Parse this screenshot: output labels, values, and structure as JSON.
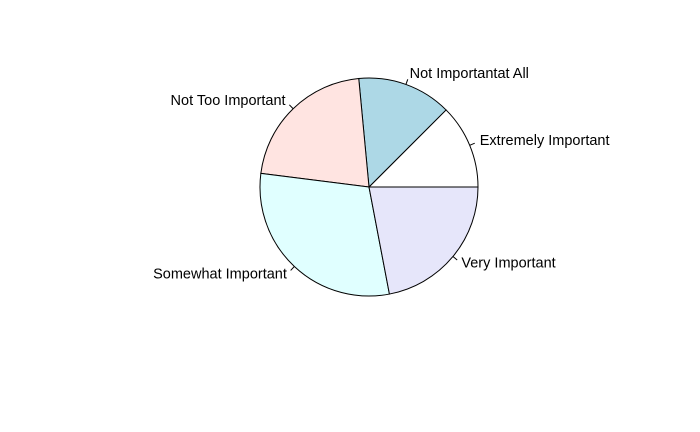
{
  "chart_data": {
    "type": "pie",
    "title": "",
    "start_angle_deg": 0,
    "direction": "counterclockwise",
    "slices": [
      {
        "label": "Extremely Important",
        "value": 12.5,
        "color": "#ffffff"
      },
      {
        "label": "Not Importantat All",
        "value": 14,
        "color": "#add8e6"
      },
      {
        "label": "Not Too Important",
        "value": 21.5,
        "color": "#ffe4e1"
      },
      {
        "label": "Somewhat Important",
        "value": 30,
        "color": "#e0ffff"
      },
      {
        "label": "Very Important",
        "value": 22,
        "color": "#e6e6fa"
      }
    ]
  }
}
